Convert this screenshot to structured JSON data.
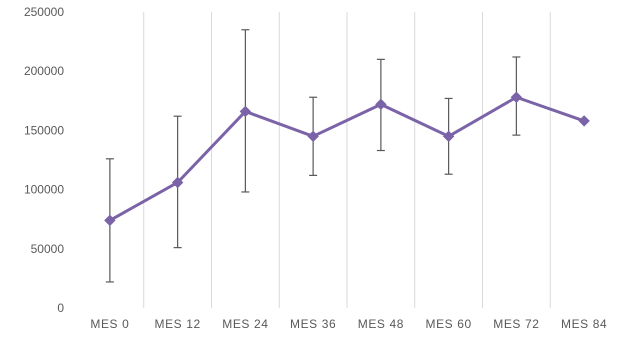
{
  "chart_data": {
    "type": "line",
    "title": "",
    "xlabel": "",
    "ylabel": "",
    "categories": [
      "MES 0",
      "MES 12",
      "MES 24",
      "MES 36",
      "MES 48",
      "MES 60",
      "MES 72",
      "MES 84"
    ],
    "series": [
      {
        "values": [
          74000,
          106000,
          166000,
          145000,
          172000,
          145000,
          178000,
          158000
        ],
        "error_upper": [
          126000,
          162000,
          235000,
          178000,
          210000,
          177000,
          212000,
          null
        ],
        "error_lower": [
          22000,
          51000,
          98000,
          112000,
          133000,
          113000,
          146000,
          null
        ],
        "color": "#7b63a8",
        "marker": "diamond"
      }
    ],
    "ylim": [
      0,
      250000
    ],
    "yticks": [
      0,
      50000,
      100000,
      150000,
      200000,
      250000
    ],
    "ytick_labels": [
      "0",
      "50000",
      "100000",
      "150000",
      "200000",
      "250000"
    ],
    "grid": "vertical category separators",
    "legend": "none",
    "colors": {
      "line": "#7b63a8",
      "error_bar": "#595959",
      "grid": "#d9d9d9",
      "text": "#595959"
    }
  }
}
